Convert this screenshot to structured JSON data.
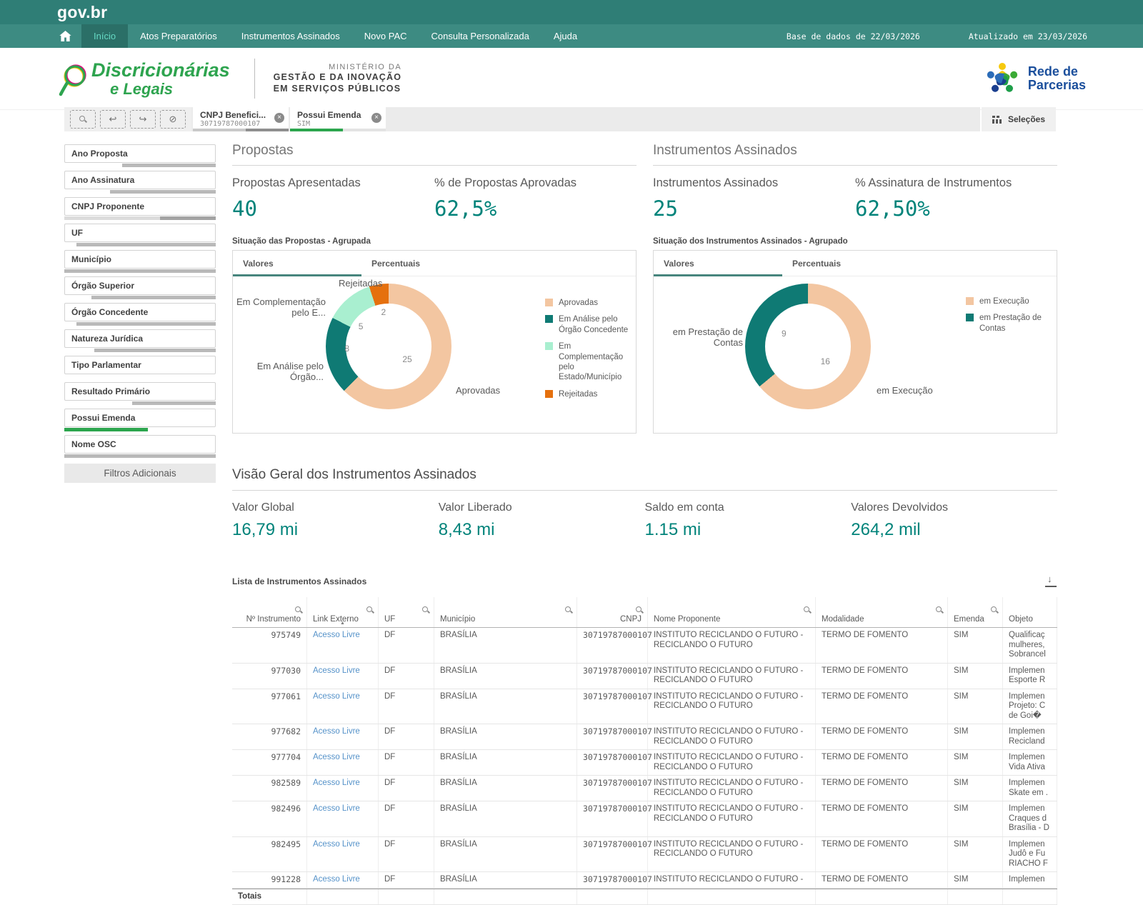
{
  "header": {
    "brand": "gov.br",
    "nav": [
      {
        "label": "Início",
        "active": true
      },
      {
        "label": "Atos Preparatórios",
        "active": false
      },
      {
        "label": "Instrumentos Assinados",
        "active": false
      },
      {
        "label": "Novo PAC",
        "active": false
      },
      {
        "label": "Consulta Personalizada",
        "active": false
      },
      {
        "label": "Ajuda",
        "active": false
      }
    ],
    "base_date": "Base de dados de 22/03/2026",
    "updated": "Atualizado em 23/03/2026"
  },
  "branding": {
    "app_line1": "Discricionárias",
    "app_line2": "e Legais",
    "ministry_line1": "MINISTÉRIO DA",
    "ministry_line2": "GESTÃO E DA INOVAÇÃO",
    "ministry_line3": "EM SERVIÇOS PÚBLICOS",
    "partner_line1": "Rede de",
    "partner_line2": "Parcerias"
  },
  "selection_bar": {
    "chips": [
      {
        "label": "CNPJ Benefici...",
        "value": "30719787000107",
        "bar": [
          [
            "#c9c9c9",
            55
          ],
          [
            "#8f8f8f",
            45
          ]
        ]
      },
      {
        "label": "Possui Emenda",
        "value": "SIM",
        "bar": [
          [
            "#2ca54e",
            55
          ],
          [
            "#e3e3e3",
            45
          ]
        ]
      }
    ],
    "selections_label": "Seleções"
  },
  "sidebar": {
    "filters": [
      {
        "label": "Ano Proposta",
        "bar": [
          [
            "#ffffff",
            38
          ],
          [
            "#b9b9b9",
            62
          ]
        ]
      },
      {
        "label": "Ano Assinatura",
        "bar": [
          [
            "#ffffff",
            30
          ],
          [
            "#b9b9b9",
            70
          ]
        ]
      },
      {
        "label": "CNPJ Proponente",
        "bar": [
          [
            "#dcdcdc",
            63
          ],
          [
            "#a3a3a3",
            37
          ]
        ]
      },
      {
        "label": "UF",
        "bar": [
          [
            "#ffffff",
            8
          ],
          [
            "#b9b9b9",
            92
          ]
        ]
      },
      {
        "label": "Município",
        "bar": [
          [
            "#b9b9b9",
            100
          ]
        ]
      },
      {
        "label": "Órgão Superior",
        "bar": [
          [
            "#ffffff",
            18
          ],
          [
            "#b9b9b9",
            82
          ]
        ]
      },
      {
        "label": "Órgão Concedente",
        "bar": [
          [
            "#ffffff",
            8
          ],
          [
            "#b9b9b9",
            92
          ]
        ]
      },
      {
        "label": "Natureza Jurídica",
        "bar": [
          [
            "#ffffff",
            20
          ],
          [
            "#b9b9b9",
            80
          ]
        ]
      },
      {
        "label": "Tipo Parlamentar",
        "bar": [
          [
            "#ffffff",
            100
          ]
        ]
      },
      {
        "label": "Resultado Primário",
        "bar": [
          [
            "#ffffff",
            45
          ],
          [
            "#b9b9b9",
            55
          ]
        ]
      },
      {
        "label": "Possui Emenda",
        "bar": [
          [
            "#2ca54e",
            55
          ],
          [
            "#ffffff",
            45
          ]
        ]
      },
      {
        "label": "Nome OSC",
        "bar": [
          [
            "#b9b9b9",
            100
          ]
        ]
      }
    ],
    "more_button": "Filtros Adicionais"
  },
  "sections": [
    {
      "title": "Propostas",
      "kpis": [
        {
          "label": "Propostas Apresentadas",
          "value": "40"
        },
        {
          "label": "% de Propostas Aprovadas",
          "value": "62,5%"
        }
      ],
      "caption": "Situação das Propostas - Agrupada"
    },
    {
      "title": "Instrumentos Assinados",
      "kpis": [
        {
          "label": "Instrumentos Assinados",
          "value": "25"
        },
        {
          "label": "% Assinatura de Instrumentos",
          "value": "62,50%"
        }
      ],
      "caption": "Situação dos Instrumentos Assinados - Agrupado"
    }
  ],
  "chart_data": [
    {
      "type": "pie",
      "subtype": "donut",
      "title": "Situação das Propostas - Agrupada",
      "tabs": [
        "Valores",
        "Percentuais"
      ],
      "active_tab": "Valores",
      "total": 40,
      "slices": [
        {
          "label": "Aprovadas",
          "value": 25,
          "color": "#f3c6a1"
        },
        {
          "label": "Em Análise pelo Órgão Concedente",
          "value": 8,
          "color": "#0f7a74"
        },
        {
          "label": "Em Complementação pelo Estado/Município",
          "value": 5,
          "color": "#a9efd0"
        },
        {
          "label": "Rejeitadas",
          "value": 2,
          "color": "#e5700e"
        }
      ],
      "callouts": [
        "Aprovadas",
        "Em Análise pelo Órgão...",
        "Em Complementação pelo E...",
        "Rejeitadas"
      ],
      "legend_position": "right"
    },
    {
      "type": "pie",
      "subtype": "donut",
      "title": "Situação dos Instrumentos Assinados - Agrupado",
      "tabs": [
        "Valores",
        "Percentuais"
      ],
      "active_tab": "Valores",
      "total": 25,
      "slices": [
        {
          "label": "em Execução",
          "value": 16,
          "color": "#f3c6a1"
        },
        {
          "label": "em Prestação de Contas",
          "value": 9,
          "color": "#0f7a74"
        }
      ],
      "callouts": [
        "em Execução",
        "em Prestação de Contas"
      ],
      "legend_position": "right"
    }
  ],
  "overview": {
    "title": "Visão Geral dos Instrumentos Assinados",
    "kpis": [
      {
        "label": "Valor Global",
        "value": "16,79 mi"
      },
      {
        "label": "Valor Liberado",
        "value": "8,43 mi"
      },
      {
        "label": "Saldo em conta",
        "value": "1.15 mi"
      },
      {
        "label": "Valores Devolvidos",
        "value": "264,2 mil"
      }
    ]
  },
  "table": {
    "title": "Lista de Instrumentos Assinados",
    "columns": [
      {
        "label": "Nº Instrumento",
        "search": true,
        "align": "right"
      },
      {
        "label": "Link Externo",
        "search": true,
        "sort": "asc"
      },
      {
        "label": "UF",
        "search": true
      },
      {
        "label": "Município",
        "search": true
      },
      {
        "label": "CNPJ",
        "search": true,
        "align": "right"
      },
      {
        "label": "Nome Proponente",
        "search": true
      },
      {
        "label": "Modalidade",
        "search": true
      },
      {
        "label": "Emenda",
        "search": true
      },
      {
        "label": "Objeto",
        "search": false
      }
    ],
    "rows": [
      {
        "num": "975749",
        "link": "Acesso Livre",
        "uf": "DF",
        "municipio": "BRASÍLIA",
        "cnpj": "30719787000107",
        "proponente": "INSTITUTO RECICLANDO O FUTURO - RECICLANDO O FUTURO",
        "modalidade": "TERMO DE FOMENTO",
        "emenda": "SIM",
        "objeto": [
          "Qualificaç",
          "mulheres,",
          "Sobrancel"
        ]
      },
      {
        "num": "977030",
        "link": "Acesso Livre",
        "uf": "DF",
        "municipio": "BRASÍLIA",
        "cnpj": "30719787000107",
        "proponente": "INSTITUTO RECICLANDO O FUTURO - RECICLANDO O FUTURO",
        "modalidade": "TERMO DE FOMENTO",
        "emenda": "SIM",
        "objeto": [
          "Implemen",
          "Esporte R"
        ]
      },
      {
        "num": "977061",
        "link": "Acesso Livre",
        "uf": "DF",
        "municipio": "BRASÍLIA",
        "cnpj": "30719787000107",
        "proponente": "INSTITUTO RECICLANDO O FUTURO - RECICLANDO O FUTURO",
        "modalidade": "TERMO DE FOMENTO",
        "emenda": "SIM",
        "objeto": [
          "Implemen",
          "Projeto: C",
          "de Goi�"
        ]
      },
      {
        "num": "977682",
        "link": "Acesso Livre",
        "uf": "DF",
        "municipio": "BRASÍLIA",
        "cnpj": "30719787000107",
        "proponente": "INSTITUTO RECICLANDO O FUTURO - RECICLANDO O FUTURO",
        "modalidade": "TERMO DE FOMENTO",
        "emenda": "SIM",
        "objeto": [
          "Implemen",
          "Recicland"
        ]
      },
      {
        "num": "977704",
        "link": "Acesso Livre",
        "uf": "DF",
        "municipio": "BRASÍLIA",
        "cnpj": "30719787000107",
        "proponente": "INSTITUTO RECICLANDO O FUTURO - RECICLANDO O FUTURO",
        "modalidade": "TERMO DE FOMENTO",
        "emenda": "SIM",
        "objeto": [
          "Implemen",
          "Vida Ativa"
        ]
      },
      {
        "num": "982589",
        "link": "Acesso Livre",
        "uf": "DF",
        "municipio": "BRASÍLIA",
        "cnpj": "30719787000107",
        "proponente": "INSTITUTO RECICLANDO O FUTURO - RECICLANDO O FUTURO",
        "modalidade": "TERMO DE FOMENTO",
        "emenda": "SIM",
        "objeto": [
          "Implemen",
          "Skate em ."
        ]
      },
      {
        "num": "982496",
        "link": "Acesso Livre",
        "uf": "DF",
        "municipio": "BRASÍLIA",
        "cnpj": "30719787000107",
        "proponente": "INSTITUTO RECICLANDO O FUTURO - RECICLANDO O FUTURO",
        "modalidade": "TERMO DE FOMENTO",
        "emenda": "SIM",
        "objeto": [
          "Implemen",
          "Craques d",
          "Brasília - D"
        ]
      },
      {
        "num": "982495",
        "link": "Acesso Livre",
        "uf": "DF",
        "municipio": "BRASÍLIA",
        "cnpj": "30719787000107",
        "proponente": "INSTITUTO RECICLANDO O FUTURO - RECICLANDO O FUTURO",
        "modalidade": "TERMO DE FOMENTO",
        "emenda": "SIM",
        "objeto": [
          "Implemen",
          "Judô e Fu",
          "RIACHO F"
        ]
      },
      {
        "num": "991228",
        "link": "Acesso Livre",
        "uf": "DF",
        "municipio": "BRASÍLIA",
        "cnpj": "30719787000107",
        "proponente": "INSTITUTO RECICLANDO O FUTURO -",
        "modalidade": "TERMO DE FOMENTO",
        "emenda": "SIM",
        "objeto": [
          "Implemen"
        ]
      }
    ],
    "totals_label": "Totais"
  },
  "palette": {
    "accent_teal": "#00837a",
    "nav_teal": "#3d8b82",
    "top_teal": "#2f7e76",
    "selection_green": "#2ca54e",
    "link_blue": "#5592c9"
  }
}
